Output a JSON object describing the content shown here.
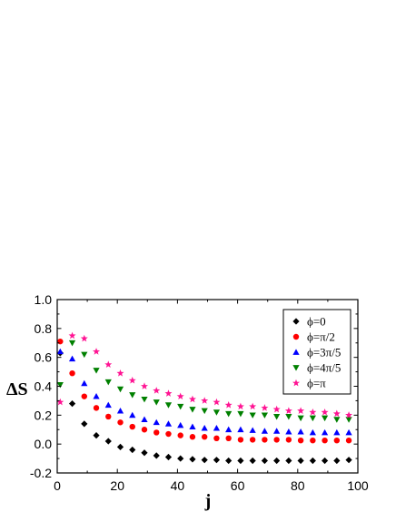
{
  "chart_data": {
    "type": "scatter",
    "title": "",
    "xlabel": "j",
    "ylabel": "ΔS",
    "xlim": [
      0,
      100
    ],
    "ylim": [
      -0.2,
      1.0
    ],
    "xticks": [
      "0",
      "20",
      "40",
      "60",
      "80",
      "100"
    ],
    "yticks": [
      "-0.2",
      "0.0",
      "0.2",
      "0.4",
      "0.6",
      "0.8",
      "1.0"
    ],
    "grid": false,
    "legend_position": "top-right",
    "x": [
      1,
      5,
      9,
      13,
      17,
      21,
      25,
      29,
      33,
      37,
      41,
      45,
      49,
      53,
      57,
      61,
      65,
      69,
      73,
      77,
      81,
      85,
      89,
      93,
      97
    ],
    "series": [
      {
        "name": "ϕ=0",
        "marker": "diamond",
        "color": "#000000",
        "values": [
          0.63,
          0.28,
          0.14,
          0.06,
          0.02,
          -0.02,
          -0.04,
          -0.06,
          -0.08,
          -0.09,
          -0.1,
          -0.105,
          -0.11,
          -0.11,
          -0.115,
          -0.115,
          -0.115,
          -0.115,
          -0.115,
          -0.115,
          -0.115,
          -0.115,
          -0.115,
          -0.115,
          -0.11
        ]
      },
      {
        "name": "ϕ=π/2",
        "marker": "circle",
        "color": "#ff0000",
        "values": [
          0.71,
          0.49,
          0.33,
          0.25,
          0.19,
          0.15,
          0.12,
          0.1,
          0.08,
          0.07,
          0.06,
          0.05,
          0.05,
          0.04,
          0.04,
          0.03,
          0.03,
          0.03,
          0.03,
          0.03,
          0.025,
          0.025,
          0.025,
          0.025,
          0.025
        ]
      },
      {
        "name": "ϕ=3π/5",
        "marker": "triangle-up",
        "color": "#0000ff",
        "values": [
          0.64,
          0.59,
          0.42,
          0.33,
          0.27,
          0.23,
          0.2,
          0.17,
          0.15,
          0.14,
          0.13,
          0.12,
          0.11,
          0.11,
          0.1,
          0.1,
          0.095,
          0.09,
          0.09,
          0.085,
          0.085,
          0.08,
          0.08,
          0.08,
          0.08
        ]
      },
      {
        "name": "ϕ=4π/5",
        "marker": "triangle-down",
        "color": "#008000",
        "values": [
          0.41,
          0.7,
          0.62,
          0.51,
          0.43,
          0.38,
          0.34,
          0.31,
          0.29,
          0.27,
          0.26,
          0.24,
          0.23,
          0.22,
          0.21,
          0.21,
          0.2,
          0.2,
          0.19,
          0.19,
          0.18,
          0.18,
          0.18,
          0.17,
          0.17
        ]
      },
      {
        "name": "ϕ=π",
        "marker": "star",
        "color": "#ff1493",
        "values": [
          0.29,
          0.75,
          0.73,
          0.64,
          0.55,
          0.49,
          0.44,
          0.4,
          0.37,
          0.35,
          0.33,
          0.31,
          0.3,
          0.29,
          0.27,
          0.26,
          0.26,
          0.25,
          0.24,
          0.23,
          0.23,
          0.22,
          0.22,
          0.21,
          0.2
        ]
      }
    ]
  }
}
